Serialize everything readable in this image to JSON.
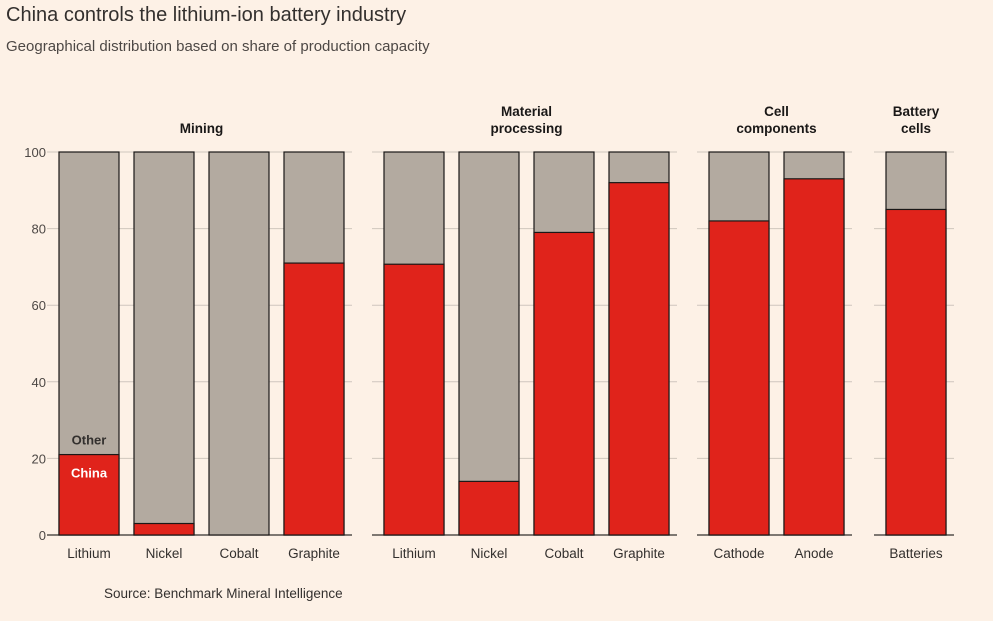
{
  "title": "China controls the lithium-ion battery industry",
  "subtitle": "Geographical distribution based on share of production capacity",
  "source": "Source: Benchmark Mineral Intelligence",
  "colors": {
    "china": "#e0231b",
    "other": "#b3aaa0",
    "background": "#fdf1e6",
    "grid": "#cfc6bd"
  },
  "chart_data": {
    "type": "bar",
    "stacked": true,
    "ylim": [
      0,
      100
    ],
    "yticks": [
      0,
      20,
      40,
      60,
      80,
      100
    ],
    "grid": true,
    "series_labels": {
      "china": "China",
      "other": "Other"
    },
    "groups": [
      {
        "name": "Mining",
        "categories": [
          "Lithium",
          "Nickel",
          "Cobalt",
          "Graphite"
        ],
        "china": [
          21,
          3,
          0,
          71
        ]
      },
      {
        "name": "Material processing",
        "categories": [
          "Lithium",
          "Nickel",
          "Cobalt",
          "Graphite"
        ],
        "china": [
          70.7,
          14,
          79,
          92
        ]
      },
      {
        "name": "Cell components",
        "categories": [
          "Cathode",
          "Anode"
        ],
        "china": [
          82,
          93
        ]
      },
      {
        "name": "Battery cells",
        "categories": [
          "Batteries"
        ],
        "china": [
          85
        ]
      }
    ]
  }
}
